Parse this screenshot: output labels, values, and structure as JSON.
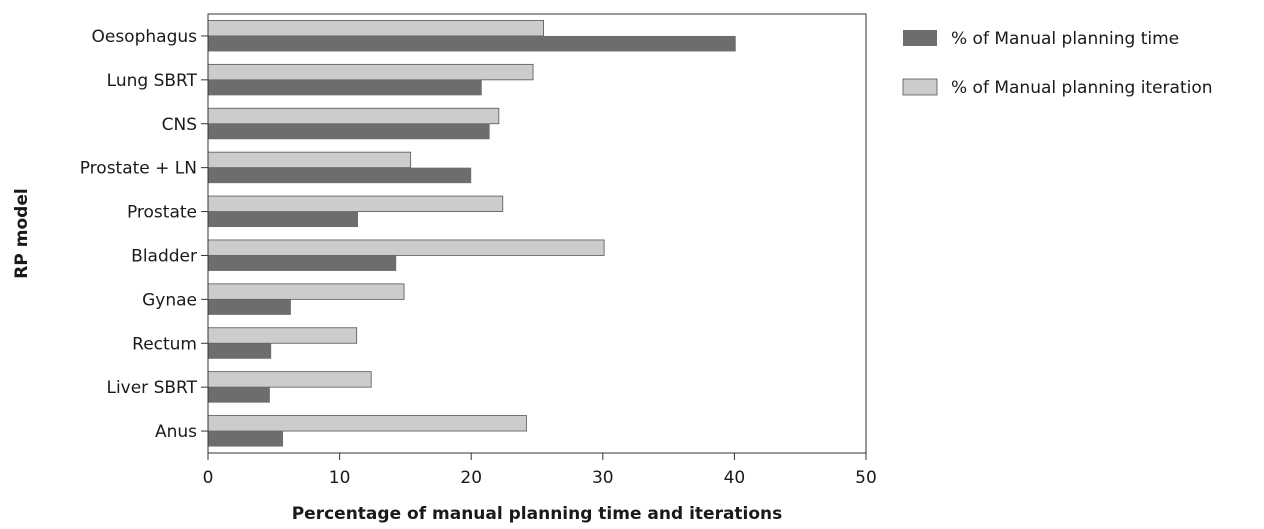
{
  "chart_data": {
    "type": "bar",
    "orientation": "horizontal",
    "title": "",
    "xlabel": "Percentage of manual planning time and iterations",
    "ylabel": "RP model",
    "xlim": [
      0,
      50
    ],
    "xticks": [
      0,
      10,
      20,
      30,
      40,
      50
    ],
    "grid": false,
    "legend_position": "top-right",
    "categories": [
      "Oesophagus",
      "Lung SBRT",
      "CNS",
      "Prostate + LN",
      "Prostate",
      "Bladder",
      "Gynae",
      "Rectum",
      "Liver SBRT",
      "Anus"
    ],
    "series": [
      {
        "name": "% of Manual planning time",
        "color": "#6d6d6d",
        "values": [
          40.1,
          20.8,
          21.4,
          20.0,
          11.4,
          14.3,
          6.3,
          4.8,
          4.7,
          5.7
        ]
      },
      {
        "name": "% of Manual planning iteration",
        "color": "#cccccc",
        "values": [
          25.5,
          24.7,
          22.1,
          15.4,
          22.4,
          30.1,
          14.9,
          11.3,
          12.4,
          24.2
        ]
      }
    ]
  }
}
